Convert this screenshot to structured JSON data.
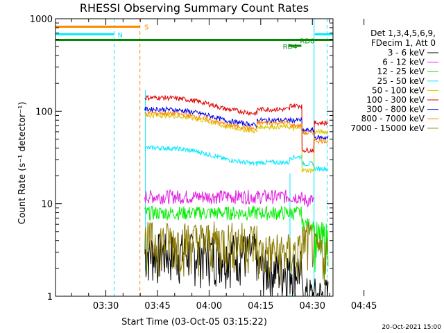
{
  "chart_data": {
    "type": "line",
    "title": "RHESSI Observing Summary Count Rates",
    "xlabel": "Start Time (03-Oct-05 03:15:22)",
    "ylabel": "Count Rate (s⁻¹ detector⁻¹)",
    "yscale": "log",
    "ylim": [
      1,
      1000
    ],
    "y_tick_labels": [
      "1",
      "10",
      "100",
      "1000"
    ],
    "y_tick_values": [
      1,
      10,
      100,
      1000
    ],
    "xlim_minutes": [
      15.37,
      96.0
    ],
    "x_tick_labels": [
      "03:30",
      "03:45",
      "04:00",
      "04:15",
      "04:30",
      "04:45"
    ],
    "x_tick_minutes": [
      30,
      45,
      60,
      75,
      90,
      105
    ],
    "legend_header": [
      "Det 1,3,4,5,6,9,",
      "FDecim 1, Att 0"
    ],
    "legend_placement": "right",
    "timestamp": "20-Oct-2021 15:00",
    "series": [
      {
        "name": "3 - 6 keV",
        "color": "#000000",
        "level_by_segment": [
          3,
          2,
          2,
          1,
          1
        ]
      },
      {
        "name": "6 - 12 keV",
        "color": "#e020e0",
        "level_by_segment": [
          12,
          12,
          12,
          11,
          0
        ]
      },
      {
        "name": "12 - 25 keV",
        "color": "#00ee00",
        "level_by_segment": [
          8,
          8,
          8,
          6,
          4
        ]
      },
      {
        "name": "25 - 50 keV",
        "color": "#00e8ff",
        "level_by_segment": [
          40,
          28,
          32,
          27,
          24
        ]
      },
      {
        "name": "50 - 100 keV",
        "color": "#d8c800",
        "level_by_segment": [
          90,
          68,
          65,
          23,
          60
        ]
      },
      {
        "name": "100 - 300 keV",
        "color": "#e00000",
        "level_by_segment": [
          140,
          105,
          115,
          38,
          75
        ]
      },
      {
        "name": "300 - 800 keV",
        "color": "#0000e8",
        "level_by_segment": [
          105,
          80,
          80,
          62,
          52
        ]
      },
      {
        "name": "800 - 7000 keV",
        "color": "#ff8800",
        "level_by_segment": [
          95,
          75,
          70,
          58,
          48
        ]
      },
      {
        "name": "7000 - 15000 keV",
        "color": "#8a7a00",
        "level_by_segment": [
          4,
          3,
          3,
          4,
          3
        ]
      }
    ],
    "segments": [
      {
        "name": "S",
        "color": "#ff8800",
        "y": 820
      },
      {
        "name": "N",
        "color": "#00e8ff",
        "y": 680
      },
      {
        "name": "RD4",
        "color": "#008800",
        "y": 510
      },
      {
        "name": "RD0",
        "color": "#008800",
        "y": 590
      },
      {
        "name": "",
        "color": "#008800",
        "y": 590
      },
      {
        "name": "",
        "color": "#00e8ff",
        "y": 680
      }
    ]
  }
}
